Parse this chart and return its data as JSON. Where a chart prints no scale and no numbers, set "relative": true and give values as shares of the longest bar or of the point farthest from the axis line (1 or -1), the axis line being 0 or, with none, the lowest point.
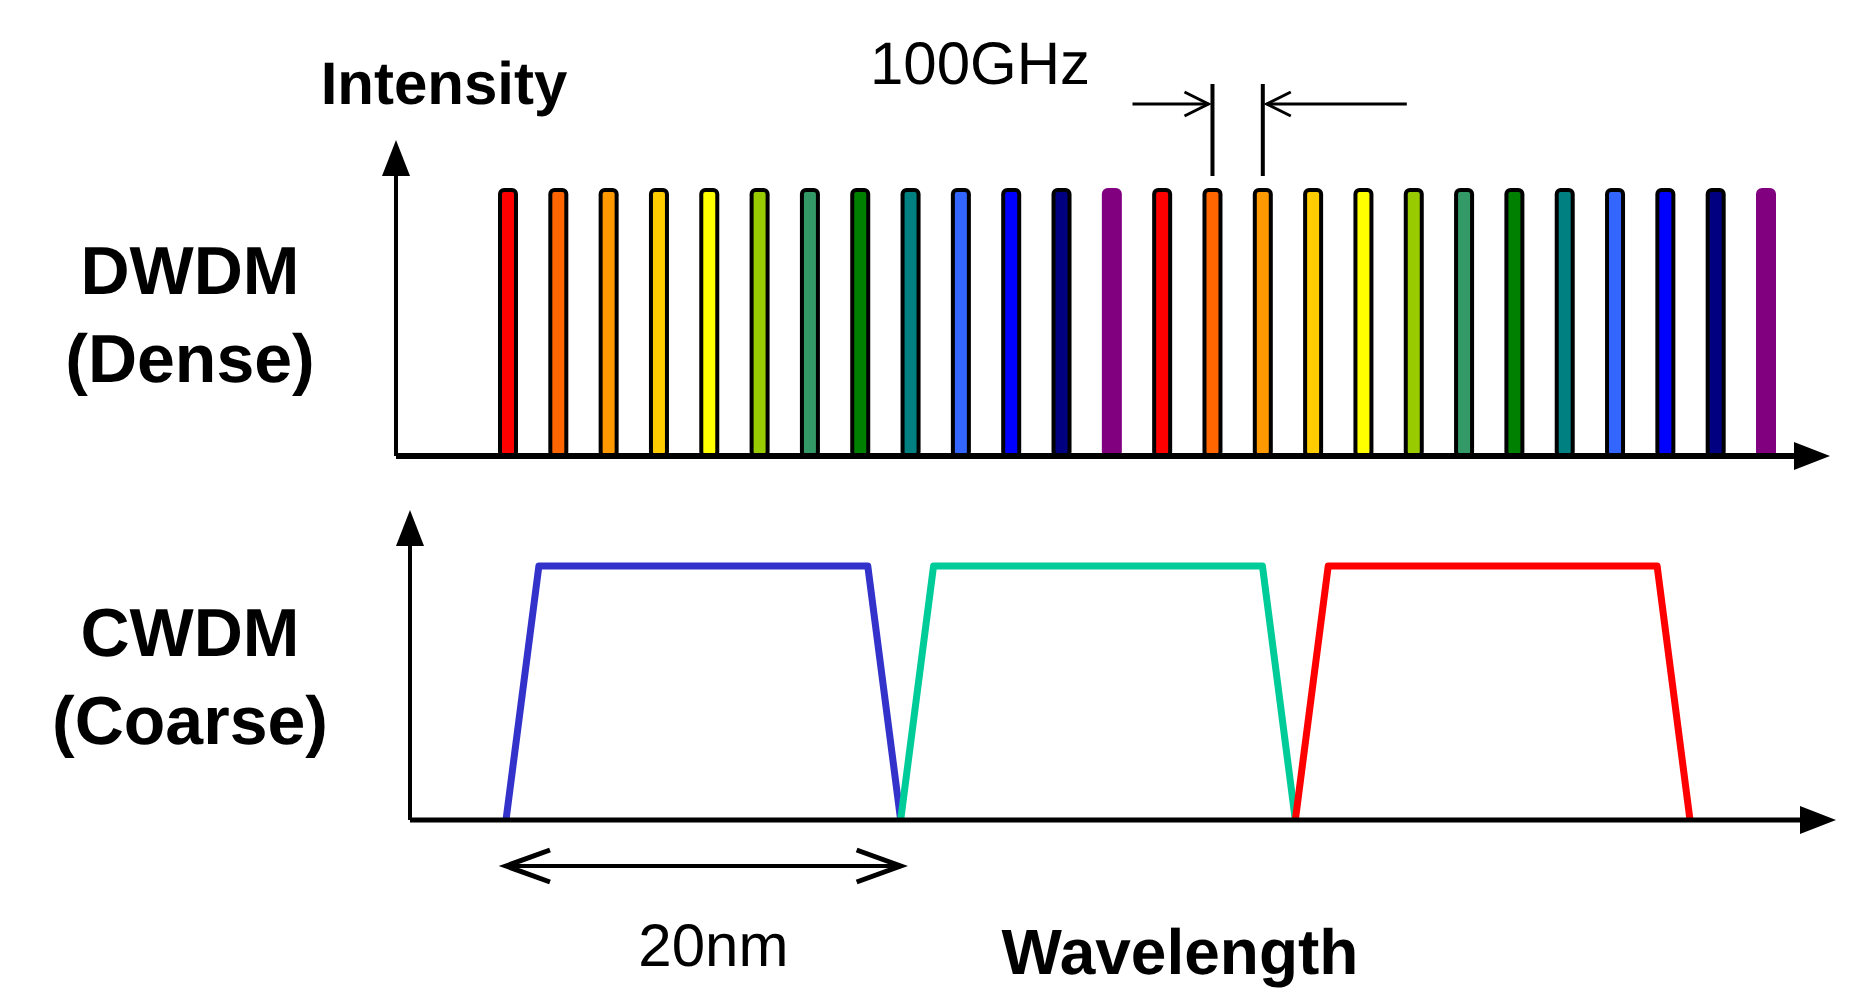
{
  "chart_data": [
    {
      "type": "bar",
      "title": "DWDM (Dense)",
      "ylabel": "Intensity",
      "relative": true,
      "categories": [
        null,
        null,
        null,
        null,
        null,
        null,
        null,
        null,
        null,
        null,
        null,
        null,
        null,
        null,
        null,
        null,
        null,
        null,
        null,
        null,
        null,
        null,
        null,
        null,
        null,
        null
      ],
      "values": [
        1,
        1,
        1,
        1,
        1,
        1,
        1,
        1,
        1,
        1,
        1,
        1,
        1,
        1,
        1,
        1,
        1,
        1,
        1,
        1,
        1,
        1,
        1,
        1,
        1,
        1
      ],
      "colors": [
        "#ff0000",
        "#ff6600",
        "#ff9900",
        "#ffcc00",
        "#ffff00",
        "#99cc00",
        "#339966",
        "#008000",
        "#008080",
        "#3366ff",
        "#0000ff",
        "#000080",
        "#800080",
        "#ff0000",
        "#ff6600",
        "#ff9900",
        "#ffcc00",
        "#ffff00",
        "#99cc00",
        "#339966",
        "#008000",
        "#008080",
        "#3366ff",
        "#0000ff",
        "#000080",
        "#800080"
      ],
      "annotations": [
        "100GHz"
      ]
    },
    {
      "type": "line",
      "title": "CWDM (Coarse)",
      "xlabel": "Wavelength",
      "relative": true,
      "categories": [
        null,
        null,
        null,
        null,
        null,
        null,
        null,
        null,
        null,
        null,
        null,
        null,
        null,
        null,
        null,
        null,
        null,
        null,
        null,
        null,
        null,
        null,
        null,
        null,
        null,
        null,
        null,
        null,
        null,
        null,
        null,
        null,
        null,
        null,
        null,
        null,
        null
      ],
      "series": [
        {
          "color": "#3333cc",
          "values": [
            0,
            1,
            1,
            1,
            1,
            1,
            1,
            1,
            1,
            1,
            1,
            1,
            0,
            null,
            null,
            null,
            null,
            null,
            null,
            null,
            null,
            null,
            null,
            null,
            null,
            null,
            null,
            null,
            null,
            null,
            null,
            null,
            null,
            null,
            null,
            null,
            null
          ]
        },
        {
          "color": "#00cc99",
          "values": [
            null,
            null,
            null,
            null,
            null,
            null,
            null,
            null,
            null,
            null,
            null,
            null,
            0,
            1,
            1,
            1,
            1,
            1,
            1,
            1,
            1,
            1,
            1,
            1,
            0,
            null,
            null,
            null,
            null,
            null,
            null,
            null,
            null,
            null,
            null,
            null,
            null
          ]
        },
        {
          "color": "#ff0000",
          "values": [
            null,
            null,
            null,
            null,
            null,
            null,
            null,
            null,
            null,
            null,
            null,
            null,
            null,
            null,
            null,
            null,
            null,
            null,
            null,
            null,
            null,
            null,
            null,
            null,
            0,
            1,
            1,
            1,
            1,
            1,
            1,
            1,
            1,
            1,
            1,
            1,
            0
          ]
        }
      ],
      "annotations": [
        "20nm"
      ]
    }
  ]
}
